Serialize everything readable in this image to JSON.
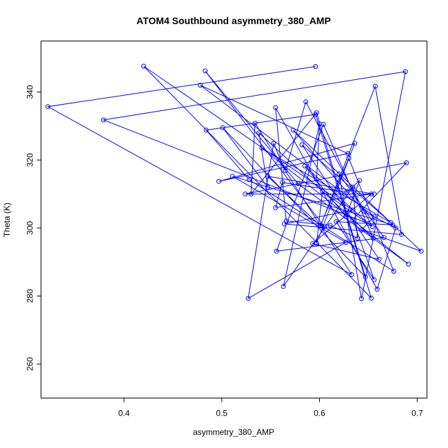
{
  "chart_data": {
    "type": "line",
    "title": "ATOM4 Southbound asymmetry_380_AMP",
    "xlabel": "asymmetry_380_AMP",
    "ylabel": "Theta (K)",
    "xlim": [
      0.315,
      0.71
    ],
    "ylim": [
      250,
      355
    ],
    "xticks": [
      0.4,
      0.5,
      0.6,
      0.7
    ],
    "xtick_labels": [
      "0.4",
      "0.5",
      "0.6",
      "0.7"
    ],
    "yticks": [
      260,
      280,
      300,
      320,
      340
    ],
    "ytick_labels": [
      "260",
      "280",
      "300",
      "320",
      "340"
    ],
    "grid": false,
    "legend": "none",
    "color": "#0000ff",
    "series": [
      {
        "x": [
          0.596,
          0.322,
          0.633,
          0.534,
          0.53,
          0.597,
          0.647,
          0.501,
          0.547,
          0.538,
          0.655,
          0.604,
          0.556,
          0.666,
          0.62,
          0.643,
          0.688,
          0.379,
          0.65,
          0.585,
          0.627,
          0.641,
          0.628,
          0.562,
          0.555,
          0.653,
          0.593,
          0.661,
          0.582,
          0.673,
          0.541,
          0.691,
          0.578,
          0.483,
          0.605,
          0.601,
          0.63,
          0.676,
          0.528,
          0.484,
          0.596,
          0.653,
          0.42,
          0.634,
          0.564,
          0.684,
          0.657,
          0.601,
          0.547,
          0.656,
          0.524,
          0.689,
          0.634,
          0.656,
          0.617,
          0.675,
          0.511,
          0.627,
          0.527,
          0.553,
          0.565,
          0.586,
          0.654,
          0.603,
          0.597,
          0.636,
          0.497,
          0.629,
          0.478,
          0.656,
          0.643,
          0.704,
          0.573,
          0.646,
          0.678,
          0.659,
          0.555,
          0.566,
          0.611,
          0.639,
          0.634,
          0.563,
          0.6,
          0.597
        ],
        "y": [
          347.5,
          335.7,
          286.3,
          330.8,
          310.0,
          333.9,
          285.6,
          329.5,
          312.0,
          328.0,
          297.0,
          330.5,
          293.2,
          297.2,
          315.9,
          279.2,
          346.0,
          331.8,
          301.3,
          318.2,
          303.4,
          314.0,
          310.5,
          313.4,
          306.0,
          310.0,
          295.4,
          290.8,
          324.5,
          301.6,
          323.5,
          289.4,
          313.0,
          346.2,
          300.4,
          300.8,
          320.5,
          287.3,
          314.2,
          328.8,
          333.4,
          279.4,
          347.6,
          305.3,
          301.2,
          298.1,
          341.7,
          300.6,
          315.2,
          310.0,
          310.0,
          319.2,
          302.5,
          284.8,
          301.9,
          300.9,
          315.2,
          295.8,
          279.3,
          324.9,
          316.9,
          337.1,
          300.4,
          310.8,
          295.5,
          324.9,
          313.7,
          321.9,
          342.0,
          303.4,
          299.4,
          293.2,
          328.8,
          304.8,
          300.0,
          282.0,
          335.4,
          302.1,
          300.8,
          297.0,
          312.0,
          282.8,
          330.6,
          314.3
        ]
      }
    ]
  }
}
